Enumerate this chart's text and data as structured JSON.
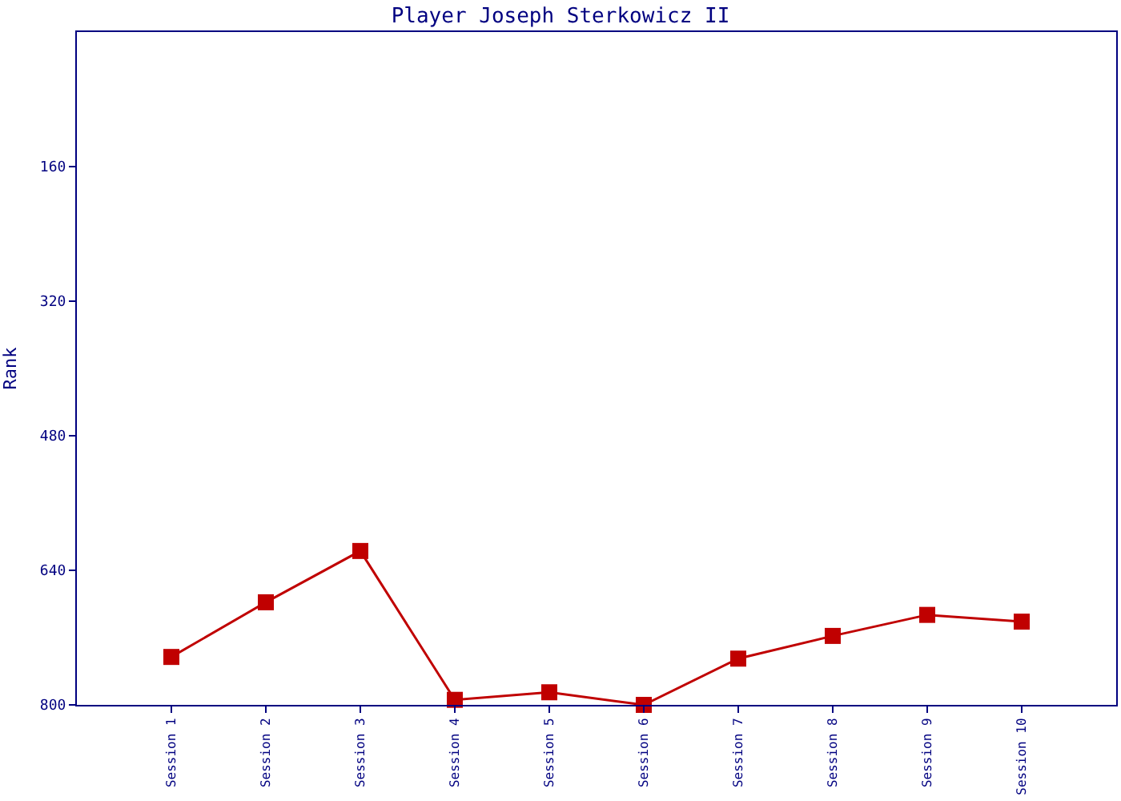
{
  "chart_data": {
    "type": "line",
    "title": "Player Joseph Sterkowicz II",
    "ylabel": "Rank",
    "categories": [
      "Session 1",
      "Session 2",
      "Session 3",
      "Session 4",
      "Session 5",
      "Session 6",
      "Session 7",
      "Session 8",
      "Session 9",
      "Session 10"
    ],
    "series": [
      {
        "color": "#c00000",
        "values": [
          743,
          678,
          617,
          794,
          785,
          800,
          745,
          718,
          693,
          701
        ]
      }
    ],
    "ylim": [
      800,
      0
    ],
    "yticks": [
      160,
      320,
      480,
      640,
      800
    ],
    "grid": false,
    "legend": false,
    "marker": "square",
    "line_style": "solid"
  }
}
